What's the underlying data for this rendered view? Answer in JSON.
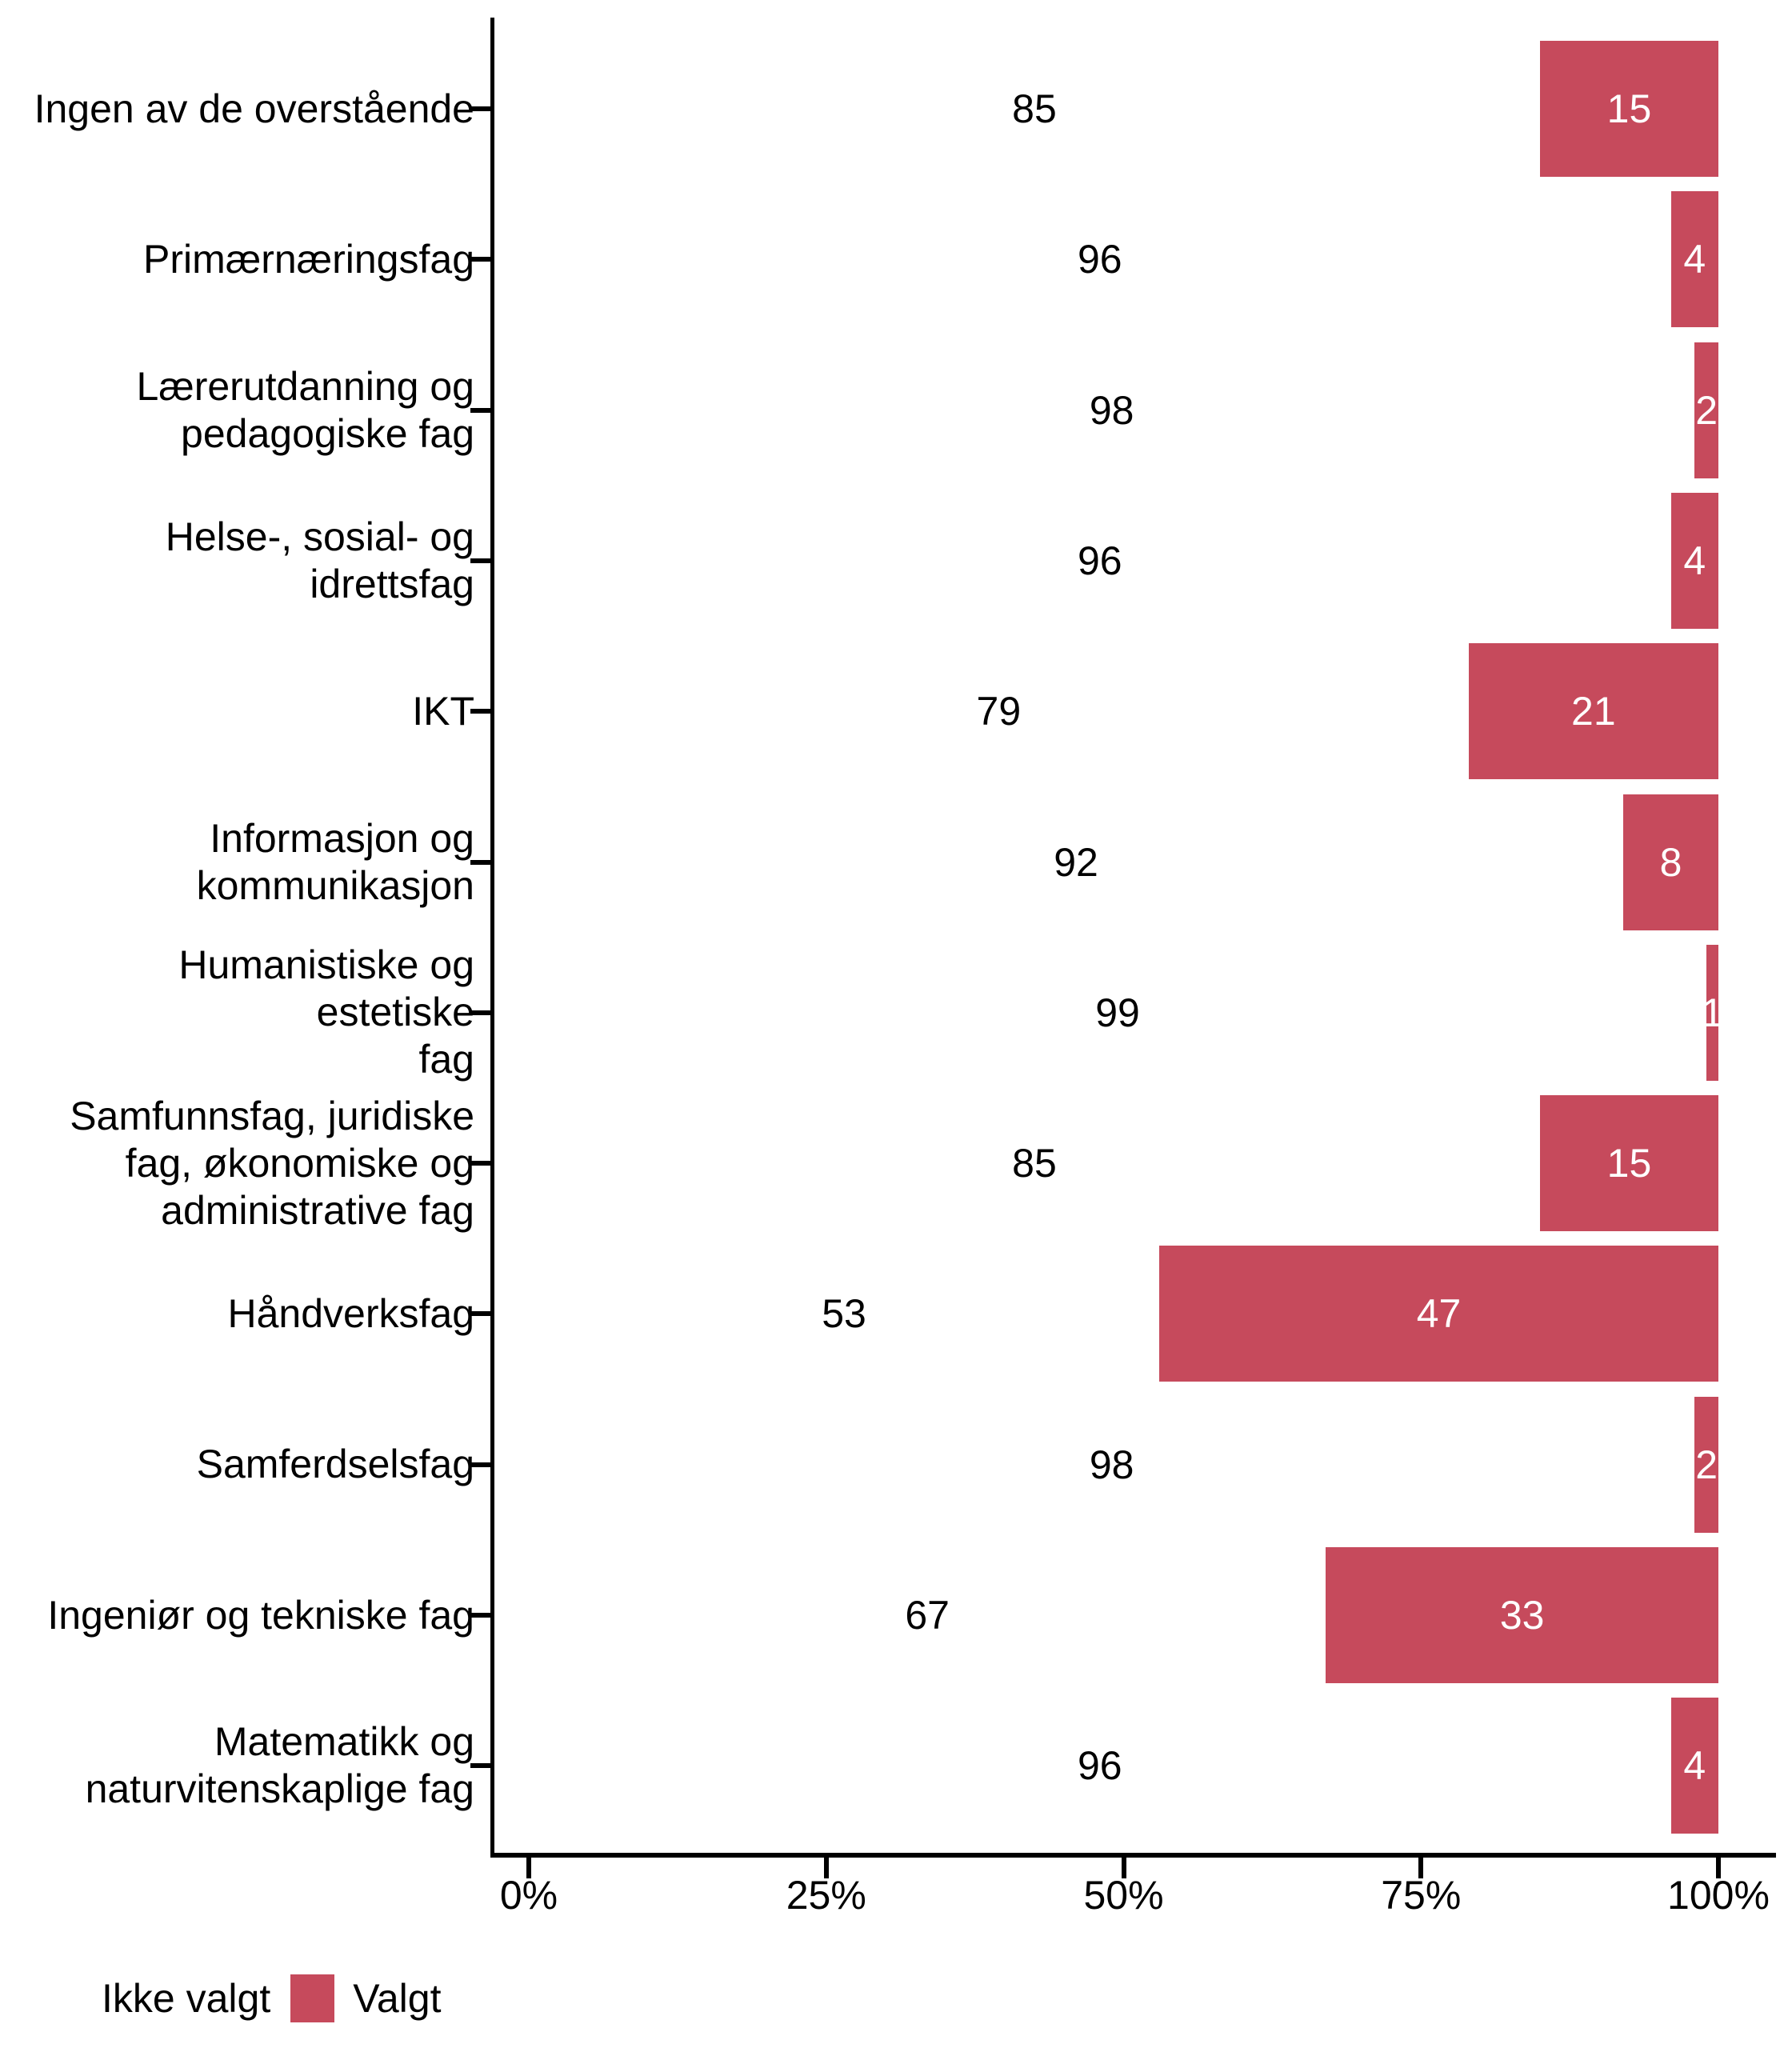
{
  "chart_data": {
    "type": "bar",
    "orientation": "horizontal",
    "stacked_percent": true,
    "title": "",
    "xlabel": "",
    "ylabel": "",
    "xlim": [
      0,
      100
    ],
    "x_ticks": [
      "0%",
      "25%",
      "50%",
      "75%",
      "100%"
    ],
    "grid": false,
    "legend_position": "bottom-left",
    "categories": [
      "Ingen av de overstående",
      "Primærnæringsfag",
      "Lærerutdanning og\npedagogiske fag",
      "Helse-, sosial- og\nidrettsfag",
      "IKT",
      "Informasjon og\nkommunikasjon",
      "Humanistiske og estetiske\nfag",
      "Samfunnsfag, juridiske\nfag, økonomiske og\nadministrative fag",
      "Håndverksfag",
      "Samferdselsfag",
      "Ingeniør og tekniske fag",
      "Matematikk og\nnaturvitenskaplige fag"
    ],
    "series": [
      {
        "name": "Ikke valgt",
        "color": "#ffffff",
        "values": [
          85,
          96,
          98,
          96,
          79,
          92,
          99,
          85,
          53,
          98,
          67,
          96
        ]
      },
      {
        "name": "Valgt",
        "color": "#c64a5c",
        "values": [
          15,
          4,
          2,
          4,
          21,
          8,
          1,
          15,
          47,
          2,
          33,
          4
        ]
      }
    ]
  },
  "legend": {
    "items": [
      {
        "label": "Ikke valgt",
        "color": "#ffffff"
      },
      {
        "label": "Valgt",
        "color": "#c64a5c"
      }
    ]
  },
  "colors": {
    "bar": "#c64a5c",
    "axis": "#000000",
    "background": "#ffffff",
    "label_on_white": "#000000",
    "label_on_bar": "#ffffff"
  }
}
